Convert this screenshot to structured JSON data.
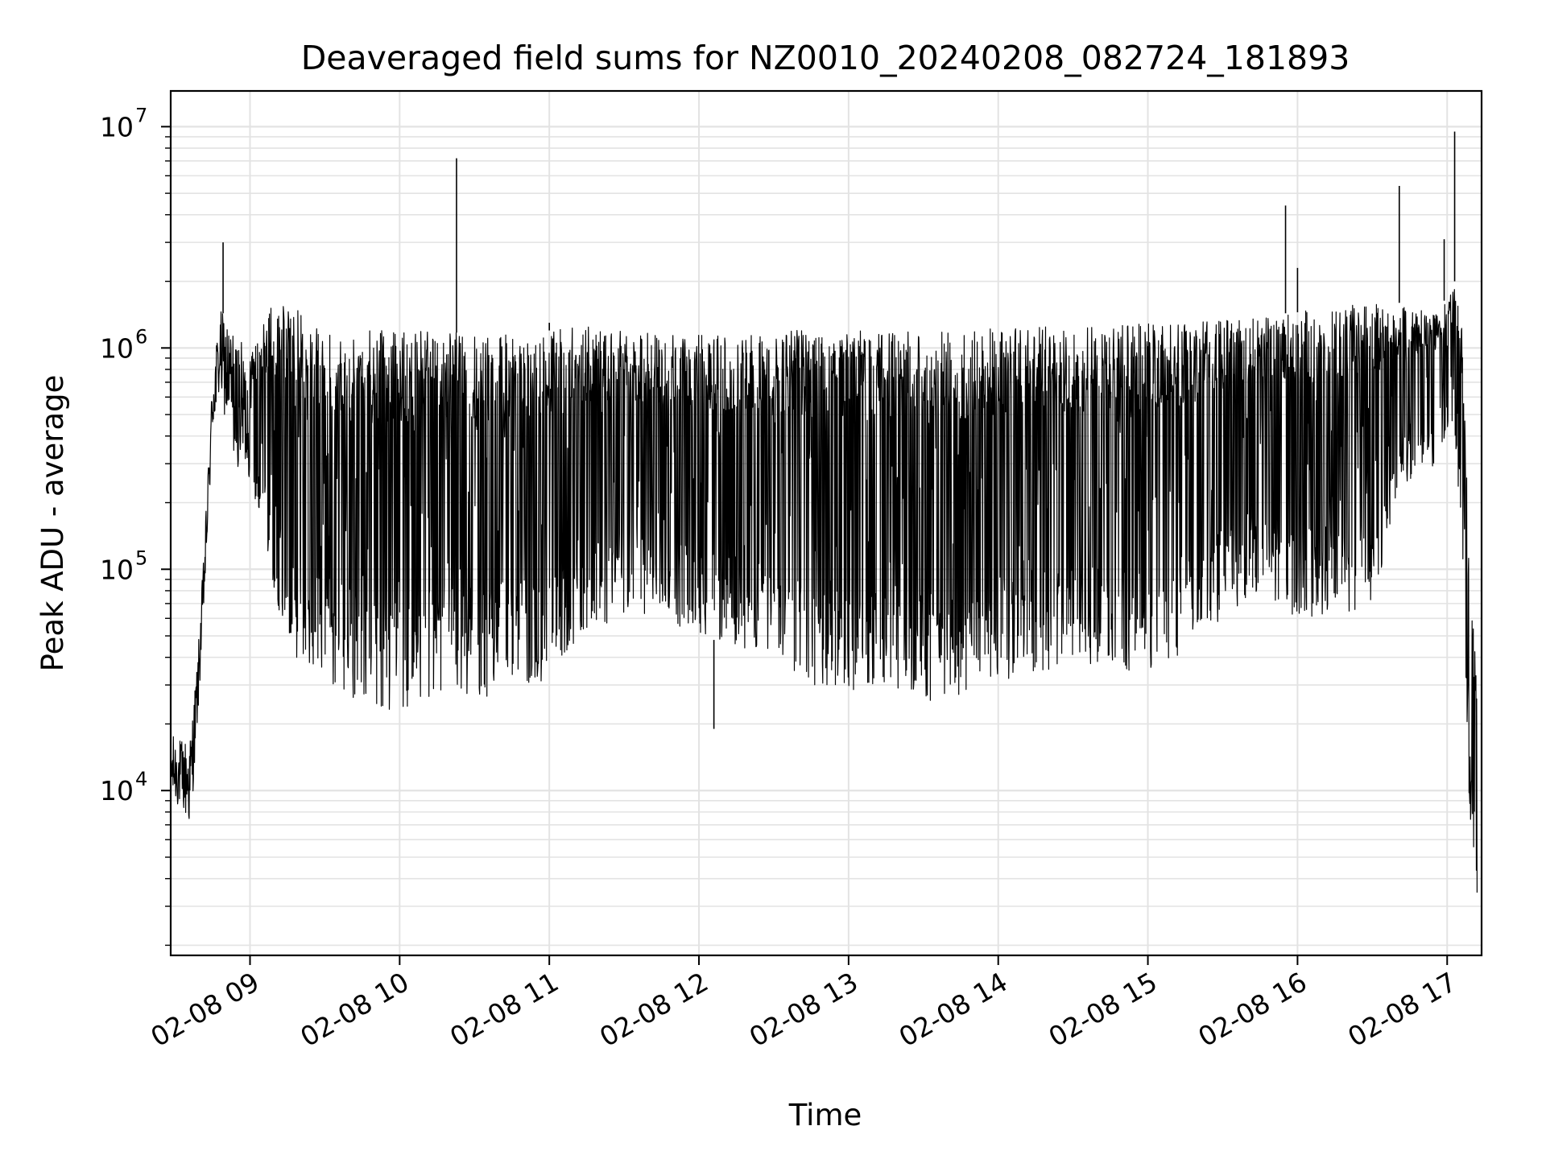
{
  "chart_data": {
    "type": "line",
    "title": "Deaveraged field sums for NZ0010_20240208_082724_181893",
    "xlabel": "Time",
    "ylabel": "Peak ADU - average",
    "yscale": "log",
    "ylim": [
      1800,
      14500000
    ],
    "xlim_hours": [
      8.47,
      17.23
    ],
    "grid": true,
    "line_color": "#000000",
    "x_ticks": [
      {
        "hour": 9,
        "label": "02-08 09"
      },
      {
        "hour": 10,
        "label": "02-08 10"
      },
      {
        "hour": 11,
        "label": "02-08 11"
      },
      {
        "hour": 12,
        "label": "02-08 12"
      },
      {
        "hour": 13,
        "label": "02-08 13"
      },
      {
        "hour": 14,
        "label": "02-08 14"
      },
      {
        "hour": 15,
        "label": "02-08 15"
      },
      {
        "hour": 16,
        "label": "02-08 16"
      },
      {
        "hour": 17,
        "label": "02-08 17"
      }
    ],
    "y_ticks": [
      {
        "value": 10000,
        "base": "10",
        "exp": "4"
      },
      {
        "value": 100000,
        "base": "10",
        "exp": "5"
      },
      {
        "value": 1000000,
        "base": "10",
        "exp": "6"
      },
      {
        "value": 10000000,
        "base": "10",
        "exp": "7"
      }
    ],
    "series": [
      {
        "envelope": [
          {
            "hour": 8.47,
            "upper": 18000,
            "lower": 9000
          },
          {
            "hour": 8.55,
            "upper": 17000,
            "lower": 8000
          },
          {
            "hour": 8.6,
            "upper": 18000,
            "lower": 6500
          },
          {
            "hour": 8.65,
            "upper": 40000,
            "lower": 20000
          },
          {
            "hour": 8.7,
            "upper": 150000,
            "lower": 80000
          },
          {
            "hour": 8.75,
            "upper": 800000,
            "lower": 400000
          },
          {
            "hour": 8.8,
            "upper": 1500000,
            "lower": 600000
          },
          {
            "hour": 8.9,
            "upper": 1200000,
            "lower": 300000
          },
          {
            "hour": 9.0,
            "upper": 900000,
            "lower": 250000
          },
          {
            "hour": 9.15,
            "upper": 1600000,
            "lower": 80000
          },
          {
            "hour": 9.3,
            "upper": 1500000,
            "lower": 40000
          },
          {
            "hour": 9.5,
            "upper": 1300000,
            "lower": 30000
          },
          {
            "hour": 9.75,
            "upper": 1200000,
            "lower": 25000
          },
          {
            "hour": 10.0,
            "upper": 1200000,
            "lower": 22000
          },
          {
            "hour": 10.25,
            "upper": 1200000,
            "lower": 28000
          },
          {
            "hour": 10.5,
            "upper": 1150000,
            "lower": 25000
          },
          {
            "hour": 10.75,
            "upper": 1150000,
            "lower": 30000
          },
          {
            "hour": 11.0,
            "upper": 1200000,
            "lower": 30000
          },
          {
            "hour": 11.25,
            "upper": 1250000,
            "lower": 50000
          },
          {
            "hour": 11.5,
            "upper": 1200000,
            "lower": 60000
          },
          {
            "hour": 11.75,
            "upper": 1150000,
            "lower": 60000
          },
          {
            "hour": 12.0,
            "upper": 1150000,
            "lower": 50000
          },
          {
            "hour": 12.25,
            "upper": 1150000,
            "lower": 45000
          },
          {
            "hour": 12.5,
            "upper": 1200000,
            "lower": 40000
          },
          {
            "hour": 12.75,
            "upper": 1250000,
            "lower": 30000
          },
          {
            "hour": 13.0,
            "upper": 1250000,
            "lower": 28000
          },
          {
            "hour": 13.25,
            "upper": 1200000,
            "lower": 30000
          },
          {
            "hour": 13.5,
            "upper": 1200000,
            "lower": 25000
          },
          {
            "hour": 13.75,
            "upper": 1200000,
            "lower": 26000
          },
          {
            "hour": 14.0,
            "upper": 1250000,
            "lower": 30000
          },
          {
            "hour": 14.25,
            "upper": 1250000,
            "lower": 35000
          },
          {
            "hour": 14.5,
            "upper": 1250000,
            "lower": 35000
          },
          {
            "hour": 14.75,
            "upper": 1250000,
            "lower": 35000
          },
          {
            "hour": 15.0,
            "upper": 1300000,
            "lower": 35000
          },
          {
            "hour": 15.25,
            "upper": 1300000,
            "lower": 40000
          },
          {
            "hour": 15.5,
            "upper": 1350000,
            "lower": 60000
          },
          {
            "hour": 15.75,
            "upper": 1400000,
            "lower": 80000
          },
          {
            "hour": 16.0,
            "upper": 1450000,
            "lower": 60000
          },
          {
            "hour": 16.25,
            "upper": 1550000,
            "lower": 60000
          },
          {
            "hour": 16.5,
            "upper": 1600000,
            "lower": 70000
          },
          {
            "hour": 16.75,
            "upper": 1600000,
            "lower": 250000
          },
          {
            "hour": 16.95,
            "upper": 1500000,
            "lower": 300000
          },
          {
            "hour": 17.05,
            "upper": 2000000,
            "lower": 450000
          },
          {
            "hour": 17.1,
            "upper": 1200000,
            "lower": 100000
          },
          {
            "hour": 17.15,
            "upper": 100000,
            "lower": 8000
          },
          {
            "hour": 17.2,
            "upper": 30000,
            "lower": 2700
          }
        ],
        "spikes": [
          {
            "hour": 8.82,
            "value": 3000000
          },
          {
            "hour": 10.38,
            "value": 7200000
          },
          {
            "hour": 11.0,
            "value": 1300000
          },
          {
            "hour": 12.1,
            "value": 19000
          },
          {
            "hour": 15.92,
            "value": 4400000
          },
          {
            "hour": 16.0,
            "value": 2300000
          },
          {
            "hour": 16.68,
            "value": 5400000
          },
          {
            "hour": 16.98,
            "value": 3100000
          },
          {
            "hour": 17.05,
            "value": 9500000
          }
        ]
      }
    ]
  }
}
